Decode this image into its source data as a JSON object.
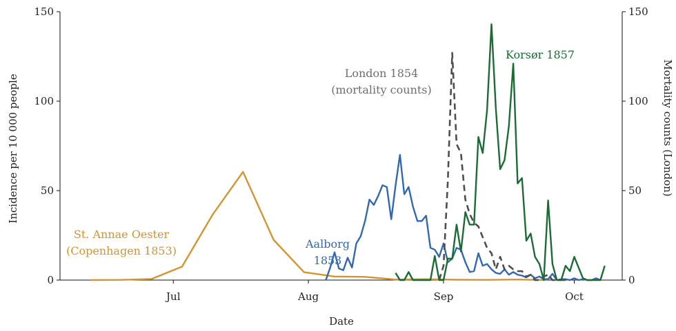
{
  "chart_data": {
    "type": "line",
    "xlabel": "Date",
    "ylabel": "Incidence per 10 000 people",
    "y2label": "Mortality counts (London)",
    "xlim": [
      "06-05",
      "10-12"
    ],
    "ylim": [
      0,
      150
    ],
    "y2lim": [
      0,
      150
    ],
    "x_ticks": [
      {
        "date": "07-01",
        "label": "Jul"
      },
      {
        "date": "08-01",
        "label": "Aug"
      },
      {
        "date": "09-01",
        "label": "Sep"
      },
      {
        "date": "10-01",
        "label": "Oct"
      }
    ],
    "y_ticks": [
      "0",
      "50",
      "100",
      "150"
    ],
    "y2_ticks": [
      "0",
      "50",
      "100",
      "150"
    ],
    "grid": false,
    "series": [
      {
        "name": "St. Annae Oester\n(Copenhagen 1853)",
        "color": "#d4942f",
        "dash": false,
        "axis": "left",
        "x": [
          "06-12",
          "06-19",
          "06-26",
          "07-03",
          "07-10",
          "07-17",
          "07-24",
          "07-31",
          "08-07",
          "08-14",
          "08-21",
          "08-28",
          "09-04",
          "09-11",
          "09-18",
          "09-25"
        ],
        "values": [
          0,
          0.1,
          0.6,
          7.5,
          36.5,
          60.5,
          22.5,
          4.4,
          2,
          1.8,
          0.3,
          0.5,
          0.2,
          0.1,
          0.3,
          0
        ]
      },
      {
        "name": "Aalborg\n1853",
        "color": "#3168b1",
        "dash": false,
        "axis": "left",
        "x": [
          "08-05",
          "08-06",
          "08-07",
          "08-08",
          "08-09",
          "08-10",
          "08-11",
          "08-12",
          "08-13",
          "08-14",
          "08-15",
          "08-16",
          "08-17",
          "08-18",
          "08-19",
          "08-20",
          "08-21",
          "08-22",
          "08-23",
          "08-24",
          "08-25",
          "08-26",
          "08-27",
          "08-28",
          "08-29",
          "08-30",
          "08-31",
          "09-01",
          "09-02",
          "09-03",
          "09-04",
          "09-05",
          "09-06",
          "09-07",
          "09-08",
          "09-09",
          "09-10",
          "09-11",
          "09-12",
          "09-13",
          "09-14",
          "09-15",
          "09-16",
          "09-17",
          "09-18",
          "09-19",
          "09-20",
          "09-21",
          "09-22",
          "09-23",
          "09-24",
          "09-25",
          "09-26",
          "09-27",
          "09-28",
          "09-29",
          "09-30",
          "10-01",
          "10-02",
          "10-03",
          "10-04",
          "10-05",
          "10-06",
          "10-07"
        ],
        "values": [
          0,
          7,
          15.5,
          6.5,
          5.5,
          12.5,
          7,
          20.5,
          24.5,
          33,
          45,
          42,
          47,
          53,
          52,
          34,
          53,
          70,
          48,
          52,
          41,
          33,
          33,
          36,
          18,
          17,
          13,
          20.5,
          10,
          12,
          18,
          17,
          10,
          4.5,
          5,
          15,
          8,
          9,
          6,
          4,
          3.5,
          6,
          3,
          4.5,
          3,
          2.5,
          1.5,
          3,
          1,
          2,
          0.5,
          0.5,
          3.5,
          0,
          0.5,
          0.5,
          0,
          1,
          0,
          0.5,
          0,
          0,
          1,
          0
        ]
      },
      {
        "name": "London 1854\n(mortality counts)",
        "color": "#4d4d4d",
        "dash": true,
        "axis": "right",
        "x": [
          "08-31",
          "09-01",
          "09-02",
          "09-03",
          "09-04",
          "09-05",
          "09-06",
          "09-07",
          "09-08",
          "09-09",
          "09-10",
          "09-11",
          "09-12",
          "09-13",
          "09-14",
          "09-15",
          "09-16",
          "09-17",
          "09-18",
          "09-19",
          "09-20",
          "09-21",
          "09-22",
          "09-23",
          "09-24",
          "09-25",
          "09-26",
          "09-27",
          "09-28",
          "09-29",
          "09-30"
        ],
        "values": [
          0,
          8,
          56,
          127,
          76,
          71,
          45,
          37,
          32,
          30,
          24,
          18,
          15,
          6,
          13,
          6,
          8,
          6,
          5,
          5,
          2,
          3,
          0,
          0,
          2,
          3,
          0,
          0,
          0,
          0,
          0
        ]
      },
      {
        "name": "Korsør 1857",
        "color": "#1b6b35",
        "dash": false,
        "axis": "left",
        "x": [
          "08-21",
          "08-22",
          "08-23",
          "08-24",
          "08-25",
          "08-26",
          "08-27",
          "08-28",
          "08-29",
          "08-30",
          "08-31",
          "09-01",
          "09-02",
          "09-03",
          "09-04",
          "09-05",
          "09-06",
          "09-07",
          "09-08",
          "09-09",
          "09-10",
          "09-11",
          "09-12",
          "09-13",
          "09-14",
          "09-15",
          "09-16",
          "09-17",
          "09-18",
          "09-19",
          "09-20",
          "09-21",
          "09-22",
          "09-23",
          "09-24",
          "09-25",
          "09-26",
          "09-27",
          "09-28",
          "09-29",
          "09-30",
          "10-01",
          "10-02",
          "10-03",
          "10-04",
          "10-05",
          "10-06",
          "10-07",
          "10-08"
        ],
        "values": [
          4,
          0,
          0,
          4.5,
          0,
          0,
          0,
          0,
          0,
          13.5,
          0,
          0,
          12,
          12,
          31,
          16,
          38,
          31,
          31,
          80,
          71,
          95,
          143,
          96,
          62,
          67,
          86,
          121,
          54,
          57,
          22,
          26,
          13,
          9,
          0,
          44.5,
          9,
          0,
          0,
          8,
          5,
          13,
          7,
          1,
          0,
          0,
          0,
          0,
          8
        ]
      }
    ]
  }
}
